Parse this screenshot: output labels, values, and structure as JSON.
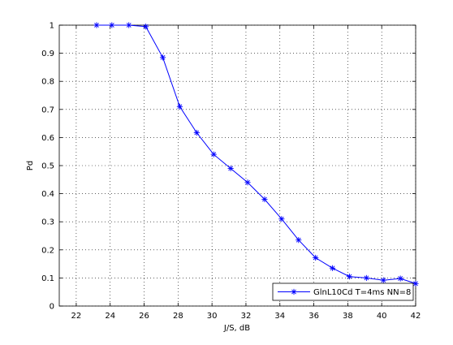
{
  "chart_data": {
    "type": "line",
    "title": "",
    "xlabel": "J/S, dB",
    "ylabel": "Pd",
    "xlim": [
      21,
      42
    ],
    "ylim": [
      0,
      1
    ],
    "x_ticks": [
      22,
      24,
      26,
      28,
      30,
      32,
      34,
      36,
      38,
      40,
      42
    ],
    "y_ticks": [
      0,
      0.1,
      0.2,
      0.3,
      0.4,
      0.5,
      0.6,
      0.7,
      0.8,
      0.9,
      1
    ],
    "grid": true,
    "legend_position": "bottom-right",
    "series": [
      {
        "name": "GlnL10Cd T=4ms NN=8",
        "color": "#0000ff",
        "marker": "asterisk",
        "x": [
          23.2,
          24.1,
          25.1,
          26.1,
          27.1,
          28.1,
          29.1,
          30.1,
          31.1,
          32.1,
          33.1,
          34.1,
          35.1,
          36.1,
          37.1,
          38.1,
          39.1,
          40.1,
          41.1,
          42.0
        ],
        "y": [
          1.0,
          1.0,
          1.0,
          0.995,
          0.885,
          0.71,
          0.617,
          0.54,
          0.49,
          0.44,
          0.38,
          0.31,
          0.235,
          0.172,
          0.135,
          0.105,
          0.1,
          0.092,
          0.098,
          0.08
        ]
      }
    ]
  }
}
